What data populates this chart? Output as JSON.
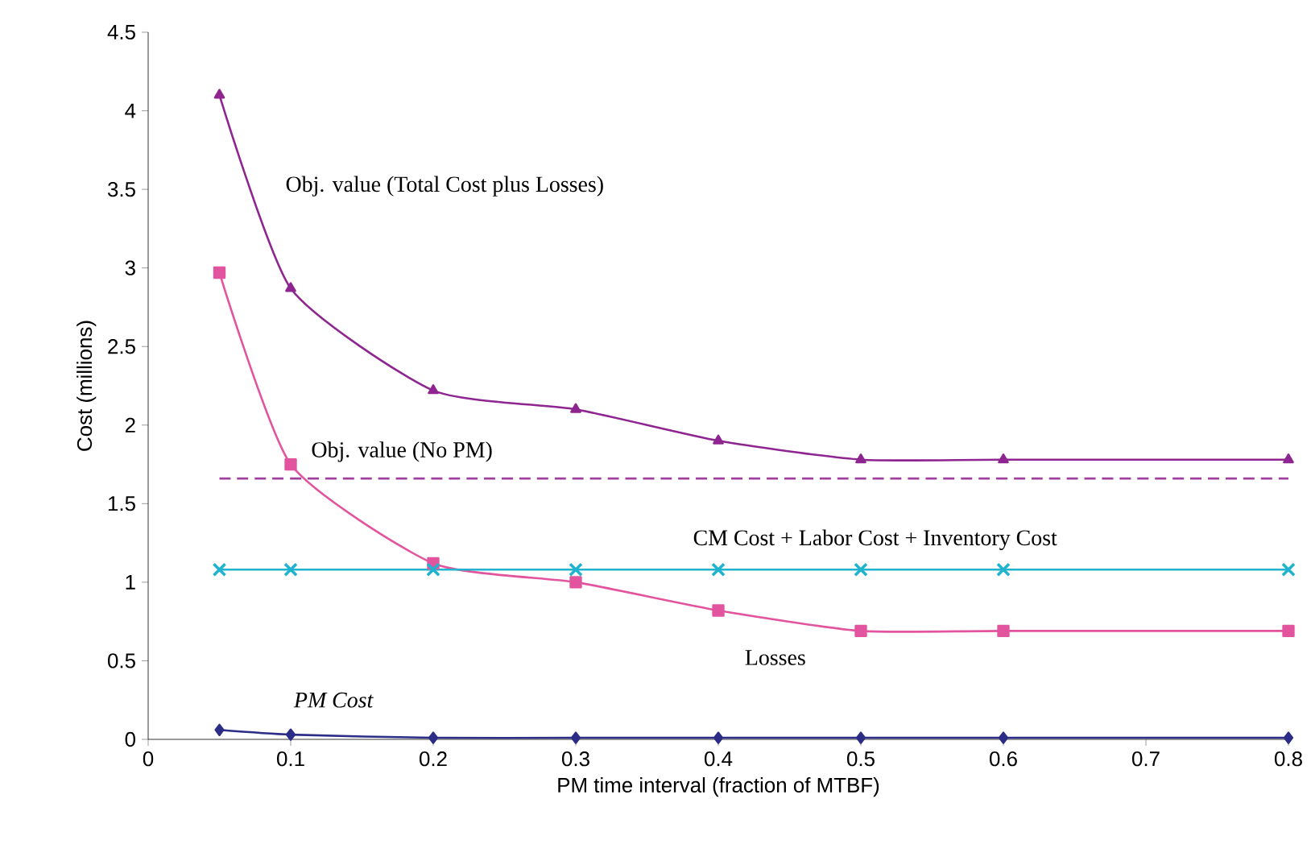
{
  "chart_data": {
    "type": "line",
    "xlabel": "PM time interval (fraction of MTBF)",
    "ylabel": "Cost (millions)",
    "xlim": [
      0,
      0.8
    ],
    "ylim": [
      0,
      4.5
    ],
    "xticks": [
      0,
      0.1,
      0.2,
      0.3,
      0.4,
      0.5,
      0.6,
      0.7,
      0.8
    ],
    "yticks": [
      0,
      0.5,
      1,
      1.5,
      2,
      2.5,
      3,
      3.5,
      4,
      4.5
    ],
    "x": [
      0.05,
      0.1,
      0.2,
      0.3,
      0.4,
      0.5,
      0.6,
      0.8
    ],
    "grid": false,
    "legend": false,
    "line_style": "solid",
    "series": [
      {
        "name": "Obj. value (Total Cost plus Losses)",
        "color": "#8e2590",
        "marker": "triangle",
        "values": [
          4.1,
          2.87,
          2.22,
          2.1,
          1.9,
          1.78,
          1.78,
          1.78
        ]
      },
      {
        "name": "Obj. value (No PM)",
        "color": "#a0409e",
        "marker": "none",
        "line_style": "dashed",
        "x": [
          0.05,
          0.8
        ],
        "values": [
          1.66,
          1.66
        ]
      },
      {
        "name": "Losses",
        "color": "#e3549e",
        "marker": "square",
        "values": [
          2.97,
          1.75,
          1.12,
          1.0,
          0.82,
          0.69,
          0.69,
          0.69
        ]
      },
      {
        "name": "PM Cost",
        "color": "#2b2d86",
        "marker": "diamond",
        "values": [
          0.06,
          0.03,
          0.01,
          0.01,
          0.01,
          0.01,
          0.01,
          0.01
        ]
      },
      {
        "name": "CM Cost + Labor Cost + Inventory Cost",
        "color": "#1fb3d0",
        "marker": "cross",
        "values": [
          1.08,
          1.08,
          1.08,
          1.08,
          1.08,
          1.08,
          1.08,
          1.08
        ]
      }
    ]
  }
}
